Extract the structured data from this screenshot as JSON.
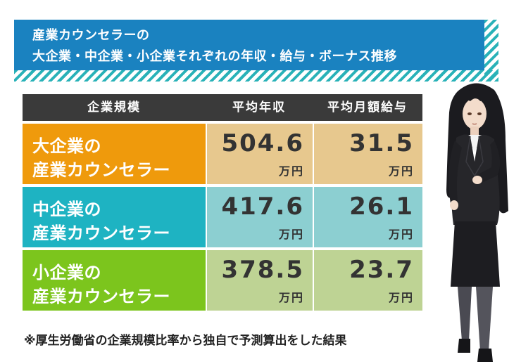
{
  "title": {
    "line1": "産業カウンセラーの",
    "line2": "大企業・中企業・小企業それぞれの年収・給与・ボーナス推移"
  },
  "table": {
    "headers": [
      "企業規模",
      "平均年収",
      "平均月額給与"
    ],
    "rows": [
      {
        "label1": "大企業の",
        "label2": "産業カウンセラー",
        "annual": "504.6",
        "annual_unit": "万円",
        "monthly": "31.5",
        "monthly_unit": "万円"
      },
      {
        "label1": "中企業の",
        "label2": "産業カウンセラー",
        "annual": "417.6",
        "annual_unit": "万円",
        "monthly": "26.1",
        "monthly_unit": "万円"
      },
      {
        "label1": "小企業の",
        "label2": "産業カウンセラー",
        "annual": "378.5",
        "annual_unit": "万円",
        "monthly": "23.7",
        "monthly_unit": "万円"
      }
    ]
  },
  "footnote": "※厚生労働省の企業規模比率から独自で予測算出をした結果",
  "colors": {
    "banner": "#1a82c0",
    "stripe": "#29b2b8",
    "header": "#3a3a3a",
    "large": "#ef9a0c",
    "medium": "#1eb3c2",
    "small": "#7cc51d"
  }
}
